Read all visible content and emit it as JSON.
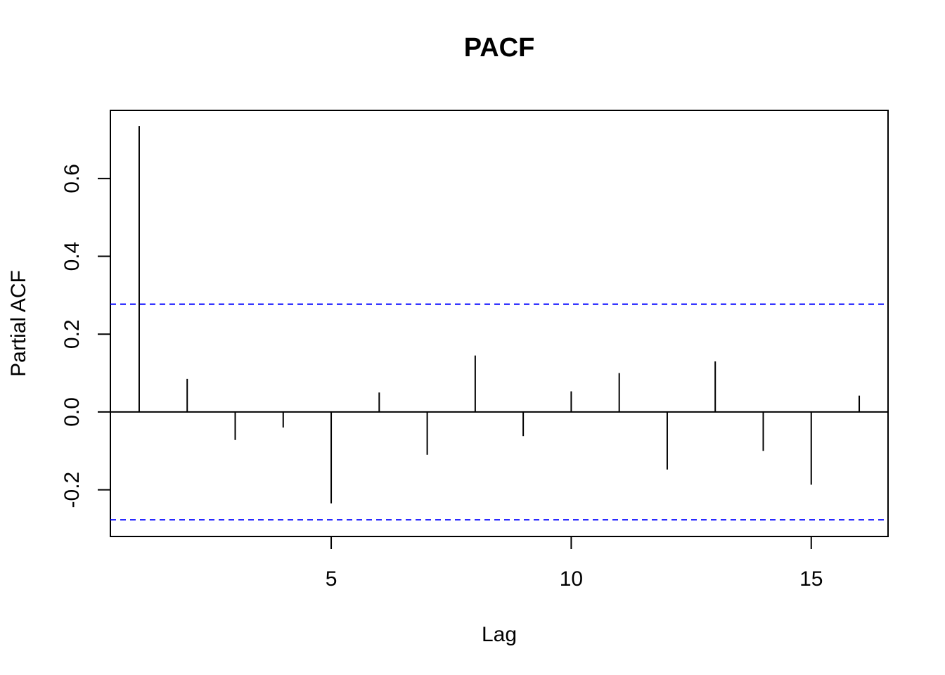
{
  "chart_data": {
    "type": "bar",
    "title": "PACF",
    "xlabel": "Lag",
    "ylabel": "Partial ACF",
    "x": [
      1,
      2,
      3,
      4,
      5,
      6,
      7,
      8,
      9,
      10,
      11,
      12,
      13,
      14,
      15,
      16
    ],
    "values": [
      0.735,
      0.085,
      -0.072,
      -0.04,
      -0.235,
      0.05,
      -0.11,
      0.145,
      -0.062,
      0.053,
      0.1,
      -0.148,
      0.13,
      -0.1,
      -0.187,
      0.042
    ],
    "xlim": [
      0.4,
      16.6
    ],
    "ylim": [
      -0.32,
      0.775
    ],
    "x_ticks": [
      5,
      10,
      15
    ],
    "x_tick_labels": [
      "5",
      "10",
      "15"
    ],
    "y_ticks": [
      -0.2,
      0.0,
      0.2,
      0.4,
      0.6
    ],
    "y_tick_labels": [
      "-0.2",
      "0.0",
      "0.2",
      "0.4",
      "0.6"
    ],
    "confidence_bounds": [
      0.277,
      -0.277
    ],
    "grid": false,
    "colors": {
      "bars": "#000000",
      "confidence": "#0000ff",
      "zero_line": "#000000"
    }
  }
}
